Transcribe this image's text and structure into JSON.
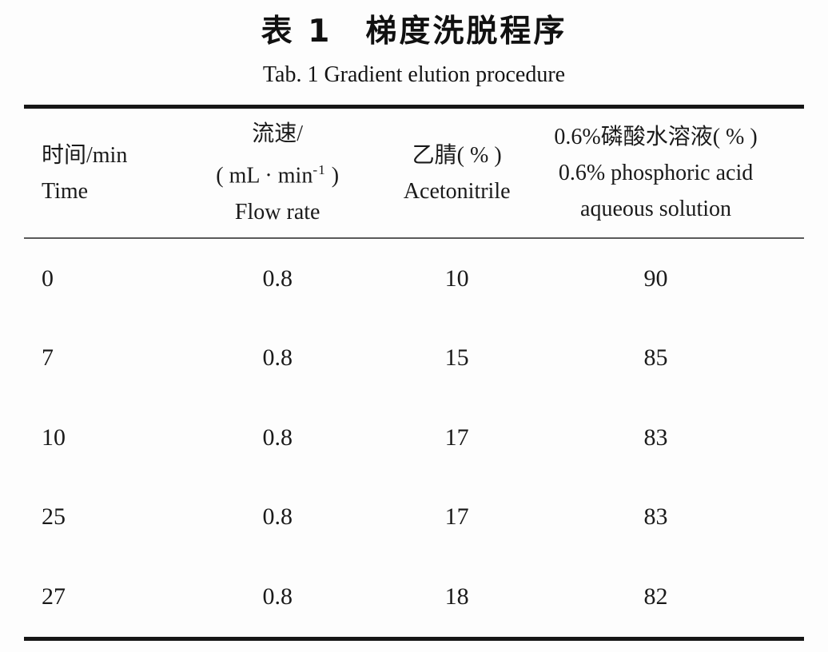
{
  "title": {
    "zh": "表 1　梯度洗脱程序",
    "en": "Tab. 1 Gradient elution procedure"
  },
  "table": {
    "columns": [
      {
        "zh": "时间/min",
        "en": "Time"
      },
      {
        "zh": "流速/",
        "unit_prefix": "( mL · min",
        "unit_sup": "-1",
        "unit_suffix": " )",
        "en": "Flow rate"
      },
      {
        "zh": "乙腈( % )",
        "en": "Acetonitrile"
      },
      {
        "zh": "0.6%磷酸水溶液( % )",
        "en_line1": "0.6% phosphoric acid",
        "en_line2": "aqueous solution"
      }
    ],
    "rows": [
      {
        "time": "0",
        "flow_rate": "0.8",
        "acetonitrile": "10",
        "phosphoric": "90"
      },
      {
        "time": "7",
        "flow_rate": "0.8",
        "acetonitrile": "15",
        "phosphoric": "85"
      },
      {
        "time": "10",
        "flow_rate": "0.8",
        "acetonitrile": "17",
        "phosphoric": "83"
      },
      {
        "time": "25",
        "flow_rate": "0.8",
        "acetonitrile": "17",
        "phosphoric": "83"
      },
      {
        "time": "27",
        "flow_rate": "0.8",
        "acetonitrile": "18",
        "phosphoric": "82"
      }
    ]
  },
  "colors": {
    "text": "#1a1a1a",
    "rule": "#161616",
    "thin_rule": "#5a5a5a",
    "background": "#fdfdfd"
  }
}
